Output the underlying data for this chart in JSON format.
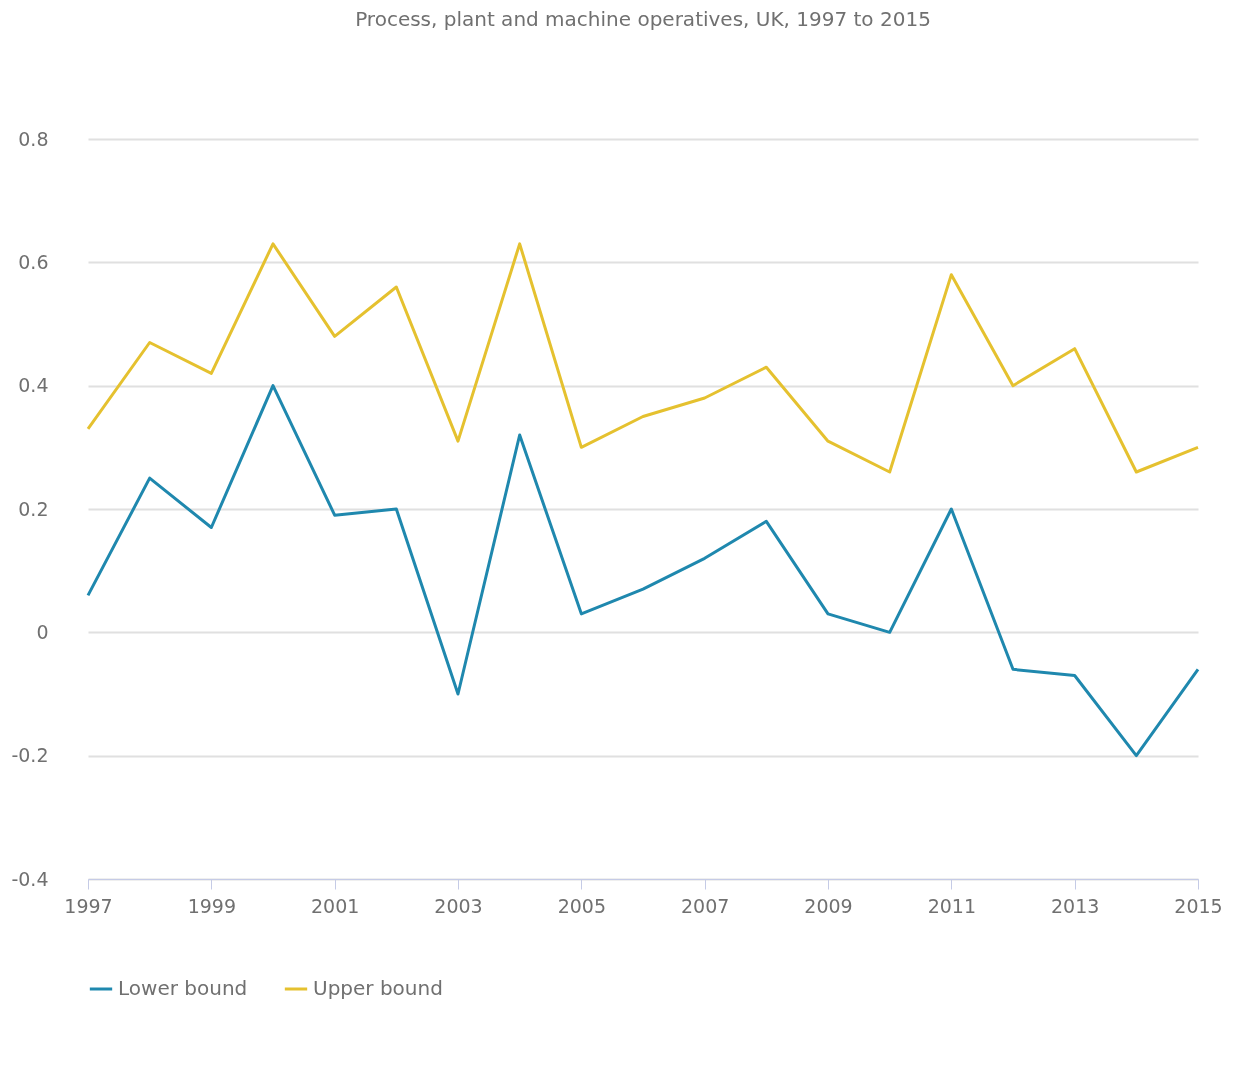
{
  "chart_data": {
    "type": "line",
    "title": "Process, plant and machine operatives, UK, 1997 to 2015",
    "x": [
      1997,
      1998,
      1999,
      2000,
      2001,
      2002,
      2003,
      2004,
      2005,
      2006,
      2007,
      2008,
      2009,
      2010,
      2011,
      2012,
      2013,
      2014,
      2015
    ],
    "series": [
      {
        "name": "Lower bound",
        "color": "#1f88ae",
        "values": [
          0.06,
          0.25,
          0.17,
          0.4,
          0.19,
          0.2,
          -0.1,
          0.32,
          0.03,
          0.07,
          0.12,
          0.18,
          0.03,
          0.0,
          0.2,
          -0.06,
          -0.07,
          -0.2,
          -0.06
        ]
      },
      {
        "name": "Upper bound",
        "color": "#e5c12f",
        "values": [
          0.33,
          0.47,
          0.42,
          0.63,
          0.48,
          0.56,
          0.31,
          0.63,
          0.3,
          0.35,
          0.38,
          0.43,
          0.31,
          0.26,
          0.58,
          0.4,
          0.46,
          0.26,
          0.3
        ]
      }
    ],
    "xlim": [
      1997,
      2015
    ],
    "xticks": [
      1997,
      1999,
      2001,
      2003,
      2005,
      2007,
      2009,
      2011,
      2013,
      2015
    ],
    "ylim": [
      -0.4,
      0.8
    ],
    "yticks": [
      -0.4,
      -0.2,
      0,
      0.2,
      0.4,
      0.6,
      0.8
    ],
    "grid": "y",
    "legend": "bottom",
    "marker": "none",
    "line_style": "solid"
  }
}
